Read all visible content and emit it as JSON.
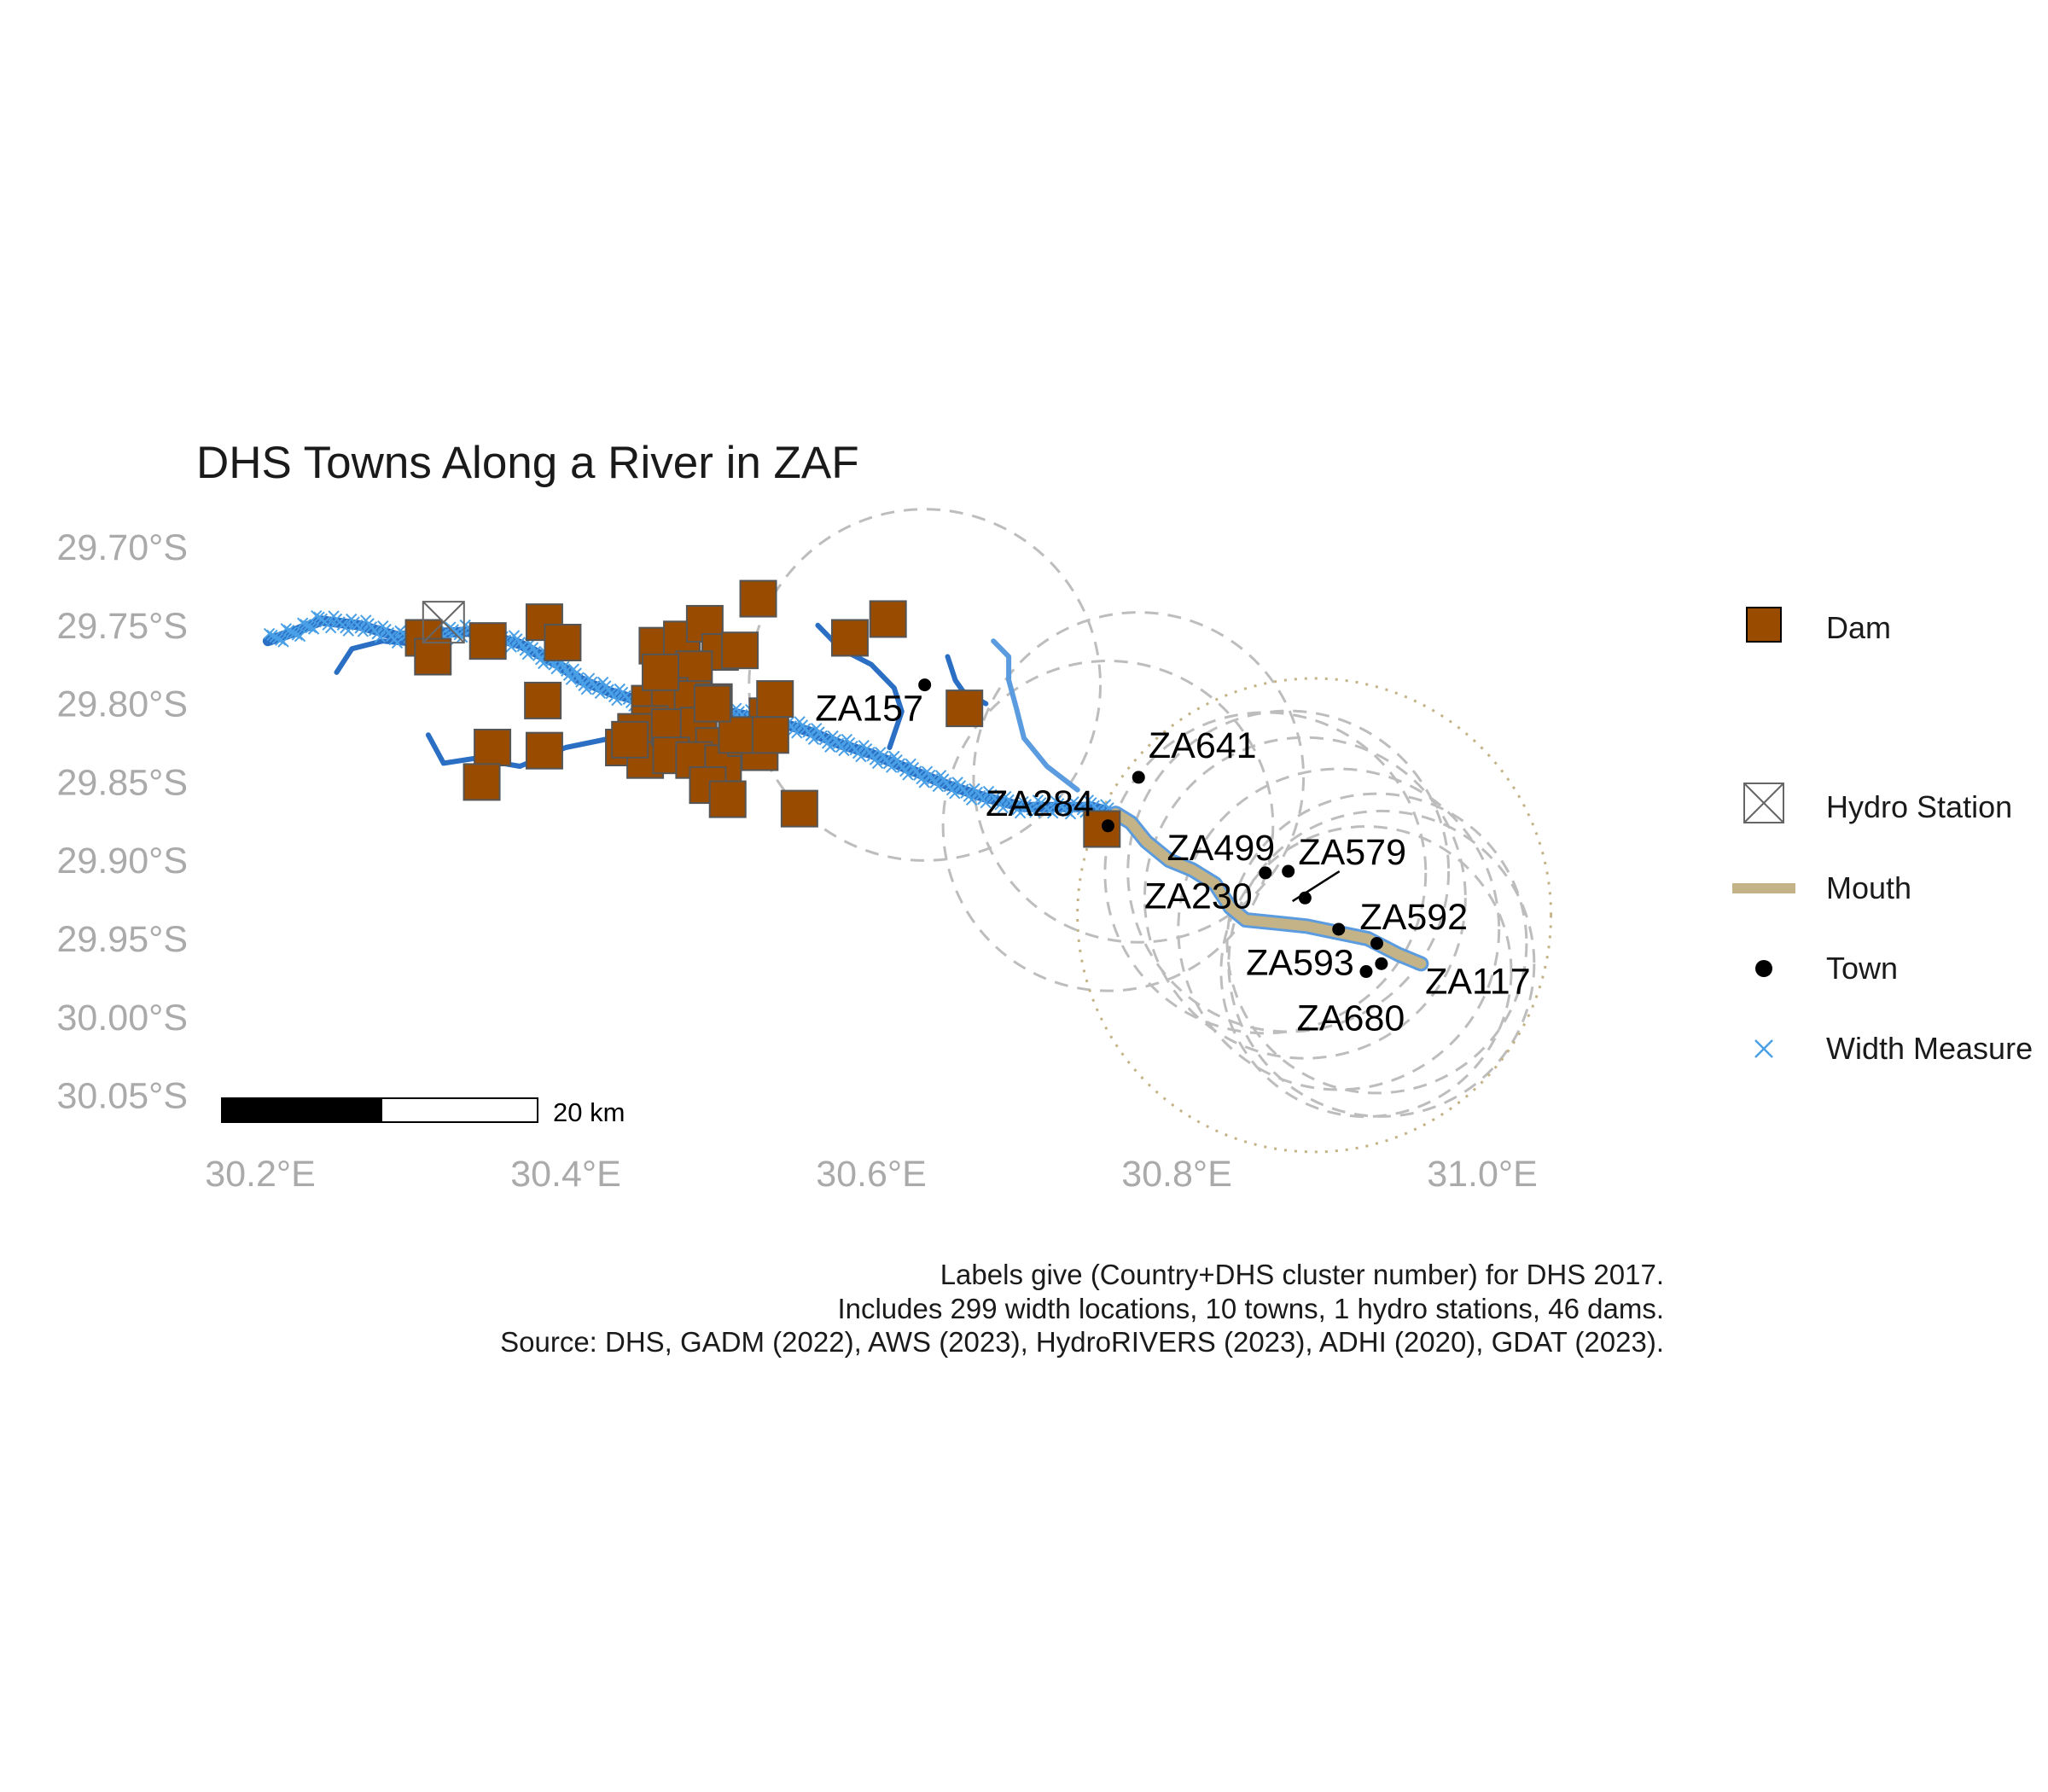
{
  "title": "DHS Towns Along a River in ZAF",
  "colors": {
    "dam_fill": "#994c00",
    "dam_stroke": "#555555",
    "river": "#2a6fc4",
    "river_light": "#5b9bdf",
    "width_measure": "#4aa0e6",
    "mouth": "#c4b386",
    "buffer": "#bdbdbd",
    "town": "#000000",
    "axis_text": "#aaaaaa"
  },
  "chart_data": {
    "type": "map",
    "title": "DHS Towns Along a River in ZAF",
    "x_axis": {
      "ticks": [
        "30.2°E",
        "30.4°E",
        "30.6°E",
        "30.8°E",
        "31.0°E"
      ],
      "values": [
        30.2,
        30.4,
        30.6,
        30.8,
        31.0
      ]
    },
    "y_axis": {
      "ticks": [
        "29.70°S",
        "29.75°S",
        "29.80°S",
        "29.85°S",
        "29.90°S",
        "29.95°S",
        "30.00°S",
        "30.05°S"
      ],
      "values": [
        29.7,
        29.75,
        29.8,
        29.85,
        29.9,
        29.95,
        30.0,
        30.05
      ]
    },
    "grid": false,
    "legend_position": "right",
    "towns": [
      {
        "label": "ZA157",
        "lon": 30.635,
        "lat": 29.788
      },
      {
        "label": "ZA641",
        "lon": 30.775,
        "lat": 29.847
      },
      {
        "label": "ZA284",
        "lon": 30.755,
        "lat": 29.878
      },
      {
        "label": "ZA499",
        "lon": 30.858,
        "lat": 29.908
      },
      {
        "label": "ZA579",
        "lon": 30.873,
        "lat": 29.907
      },
      {
        "label": "ZA230",
        "lon": 30.884,
        "lat": 29.924
      },
      {
        "label": "ZA592",
        "lon": 30.906,
        "lat": 29.944
      },
      {
        "label": "ZA593",
        "lon": 30.931,
        "lat": 29.953
      },
      {
        "label": "ZA117",
        "lon": 30.934,
        "lat": 29.966
      },
      {
        "label": "ZA680",
        "lon": 30.924,
        "lat": 29.971
      }
    ],
    "hydro_stations": [
      {
        "lon": 30.32,
        "lat": 29.748
      }
    ],
    "dams": [
      [
        30.307,
        29.758
      ],
      [
        30.313,
        29.77
      ],
      [
        30.349,
        29.76
      ],
      [
        30.386,
        29.748
      ],
      [
        30.398,
        29.761
      ],
      [
        30.385,
        29.798
      ],
      [
        30.352,
        29.828
      ],
      [
        30.345,
        29.85
      ],
      [
        30.386,
        29.83
      ],
      [
        30.46,
        29.763
      ],
      [
        30.476,
        29.759
      ],
      [
        30.491,
        29.749
      ],
      [
        30.501,
        29.767
      ],
      [
        30.514,
        29.766
      ],
      [
        30.526,
        29.733
      ],
      [
        30.586,
        29.758
      ],
      [
        30.611,
        29.746
      ],
      [
        30.484,
        29.778
      ],
      [
        30.455,
        29.8
      ],
      [
        30.468,
        29.795
      ],
      [
        30.483,
        29.797
      ],
      [
        30.497,
        29.799
      ],
      [
        30.455,
        29.813
      ],
      [
        30.446,
        29.818
      ],
      [
        30.438,
        29.828
      ],
      [
        30.452,
        29.836
      ],
      [
        30.468,
        29.815
      ],
      [
        30.487,
        29.814
      ],
      [
        30.497,
        29.827
      ],
      [
        30.469,
        29.833
      ],
      [
        30.484,
        29.836
      ],
      [
        30.503,
        29.838
      ],
      [
        30.518,
        29.822
      ],
      [
        30.532,
        29.808
      ],
      [
        30.537,
        29.797
      ],
      [
        30.527,
        29.831
      ],
      [
        30.493,
        29.852
      ],
      [
        30.506,
        29.861
      ],
      [
        30.553,
        29.867
      ],
      [
        30.661,
        29.803
      ],
      [
        30.751,
        29.88
      ],
      [
        30.442,
        29.823
      ],
      [
        30.512,
        29.82
      ],
      [
        30.462,
        29.78
      ],
      [
        30.534,
        29.82
      ],
      [
        30.496,
        29.8
      ]
    ],
    "buffers_dashed": [
      {
        "lon": 30.635,
        "lat": 29.788,
        "radius_deg": 0.115
      },
      {
        "lon": 30.775,
        "lat": 29.847,
        "radius_deg": 0.108
      },
      {
        "lon": 30.755,
        "lat": 29.878,
        "radius_deg": 0.108
      },
      {
        "lon": 30.858,
        "lat": 29.908,
        "radius_deg": 0.105
      },
      {
        "lon": 30.873,
        "lat": 29.907,
        "radius_deg": 0.105
      },
      {
        "lon": 30.884,
        "lat": 29.924,
        "radius_deg": 0.105
      },
      {
        "lon": 30.906,
        "lat": 29.944,
        "radius_deg": 0.105
      },
      {
        "lon": 30.931,
        "lat": 29.953,
        "radius_deg": 0.098
      },
      {
        "lon": 30.934,
        "lat": 29.966,
        "radius_deg": 0.1
      },
      {
        "lon": 30.924,
        "lat": 29.971,
        "radius_deg": 0.095
      }
    ],
    "buffers_dotted": [
      {
        "lon": 30.89,
        "lat": 29.935,
        "radius_deg": 0.155
      }
    ],
    "river_main": [
      [
        30.205,
        29.76
      ],
      [
        30.22,
        29.755
      ],
      [
        30.24,
        29.747
      ],
      [
        30.265,
        29.75
      ],
      [
        30.29,
        29.757
      ],
      [
        30.31,
        29.755
      ],
      [
        30.34,
        29.754
      ],
      [
        30.37,
        29.762
      ],
      [
        30.395,
        29.775
      ],
      [
        30.41,
        29.785
      ],
      [
        30.43,
        29.793
      ],
      [
        30.455,
        29.8
      ],
      [
        30.48,
        29.805
      ],
      [
        30.51,
        29.806
      ],
      [
        30.54,
        29.812
      ],
      [
        30.56,
        29.818
      ],
      [
        30.58,
        29.826
      ],
      [
        30.6,
        29.832
      ],
      [
        30.625,
        29.842
      ],
      [
        30.65,
        29.852
      ],
      [
        30.675,
        29.86
      ],
      [
        30.7,
        29.866
      ],
      [
        30.72,
        29.866
      ],
      [
        30.745,
        29.866
      ],
      [
        30.76,
        29.87
      ]
    ],
    "river_tribs": [
      [
        [
          30.25,
          29.78
        ],
        [
          30.26,
          29.765
        ],
        [
          30.28,
          29.76
        ],
        [
          30.3,
          29.762
        ]
      ],
      [
        [
          30.31,
          29.82
        ],
        [
          30.32,
          29.838
        ],
        [
          30.34,
          29.835
        ],
        [
          30.37,
          29.84
        ],
        [
          30.4,
          29.828
        ],
        [
          30.43,
          29.822
        ],
        [
          30.455,
          29.815
        ]
      ],
      [
        [
          30.565,
          29.75
        ],
        [
          30.58,
          29.765
        ],
        [
          30.6,
          29.775
        ],
        [
          30.615,
          29.79
        ],
        [
          30.62,
          29.805
        ],
        [
          30.612,
          29.828
        ]
      ],
      [
        [
          30.65,
          29.77
        ],
        [
          30.655,
          29.785
        ],
        [
          30.66,
          29.792
        ],
        [
          30.675,
          29.8
        ]
      ],
      [
        [
          30.68,
          29.76
        ],
        [
          30.69,
          29.77
        ],
        [
          30.69,
          29.785
        ],
        [
          30.695,
          29.803
        ],
        [
          30.7,
          29.822
        ],
        [
          30.715,
          29.84
        ],
        [
          30.735,
          29.855
        ]
      ]
    ],
    "mouth": [
      [
        30.76,
        29.87
      ],
      [
        30.77,
        29.876
      ],
      [
        30.78,
        29.888
      ],
      [
        30.795,
        29.9
      ],
      [
        30.81,
        29.906
      ],
      [
        30.825,
        29.915
      ],
      [
        30.835,
        29.93
      ],
      [
        30.845,
        29.938
      ],
      [
        30.865,
        29.94
      ],
      [
        30.885,
        29.942
      ],
      [
        30.905,
        29.946
      ],
      [
        30.925,
        29.95
      ],
      [
        30.945,
        29.96
      ],
      [
        30.96,
        29.966
      ]
    ],
    "width_measure_count": 299
  },
  "legend": {
    "items": [
      {
        "label": "Dam",
        "icon": "dam-square-icon"
      },
      {
        "label": "Hydro Station",
        "icon": "hydro-station-icon"
      },
      {
        "label": "Mouth",
        "icon": "mouth-line-icon"
      },
      {
        "label": "Town",
        "icon": "town-dot-icon"
      },
      {
        "label": "Width Measure",
        "icon": "width-measure-x-icon"
      }
    ]
  },
  "scale_bar": {
    "label": "20 km"
  },
  "caption": {
    "line1": "Labels give (Country+DHS cluster number) for DHS 2017.",
    "line2": "Includes 299 width locations, 10 towns, 1 hydro stations, 46 dams.",
    "line3": "Source: DHS, GADM (2022), AWS (2023), HydroRIVERS (2023), ADHI (2020), GDAT (2023)."
  }
}
